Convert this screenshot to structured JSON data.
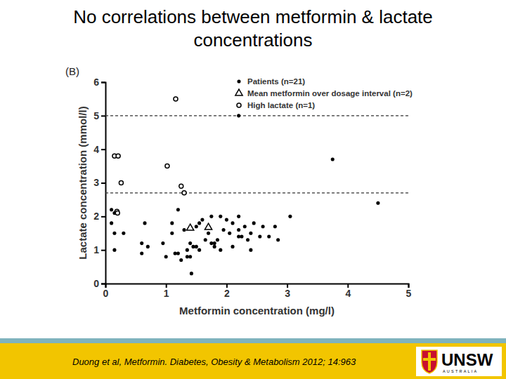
{
  "chart_data": {
    "type": "scatter",
    "title": "No correlations between metformin & lactate concentrations",
    "panel_label": "(B)",
    "x_label": "Metformin concentration (mg/l)",
    "y_label": "Lactate concentration (mmol/l)",
    "xlim": [
      0,
      5
    ],
    "xticks": [
      0,
      1,
      2,
      3,
      4,
      5
    ],
    "ylim": [
      0,
      6
    ],
    "yticks": [
      0,
      1,
      2,
      3,
      4,
      5,
      6
    ],
    "hlines": [
      5,
      2.7
    ],
    "legend": "top-right",
    "series": [
      {
        "name": "Patients (n=21)",
        "color": "#000000",
        "marker": "circle",
        "x": [
          0.1,
          0.15,
          0.1,
          0.15,
          0.3,
          0.15,
          0.6,
          0.6,
          0.7,
          0.65,
          0.95,
          1.0,
          1.1,
          1.1,
          1.15,
          1.2,
          1.25,
          1.2,
          1.3,
          1.35,
          1.35,
          1.4,
          1.4,
          1.42,
          1.45,
          1.5,
          1.5,
          1.55,
          1.55,
          1.6,
          1.65,
          1.7,
          1.7,
          1.75,
          1.75,
          1.8,
          1.8,
          1.85,
          1.9,
          1.9,
          1.95,
          2.0,
          2.05,
          2.1,
          2.1,
          2.2,
          2.2,
          2.2,
          2.25,
          2.3,
          2.35,
          2.4,
          2.4,
          2.45,
          2.55,
          2.6,
          2.7,
          2.8,
          2.85,
          3.05,
          3.75,
          4.5,
          2.2
        ],
        "values": [
          2.2,
          2.1,
          1.8,
          1.5,
          1.5,
          1.0,
          1.2,
          0.9,
          1.1,
          1.8,
          1.2,
          0.8,
          1.5,
          1.8,
          0.9,
          0.9,
          0.7,
          2.2,
          1.6,
          1.0,
          0.8,
          1.2,
          0.8,
          0.3,
          1.1,
          1.7,
          1.1,
          1.0,
          1.8,
          1.9,
          1.3,
          1.7,
          1.5,
          2.0,
          1.2,
          1.2,
          1.1,
          1.3,
          1.0,
          2.0,
          1.6,
          1.9,
          1.5,
          1.8,
          1.1,
          1.6,
          2.0,
          1.4,
          1.4,
          1.7,
          1.3,
          1.5,
          1.0,
          1.8,
          1.4,
          1.7,
          1.4,
          1.7,
          1.3,
          2.0,
          3.7,
          2.4,
          5.0
        ]
      },
      {
        "name": "Mean metformin over dosage interval (n=2)",
        "color": "#000000",
        "marker": "triangle",
        "x": [
          1.4,
          1.7
        ],
        "values": [
          1.65,
          1.67
        ]
      },
      {
        "name": "High lactate (n=1)",
        "color": "#000000",
        "marker": "open-circle",
        "x": [
          0.15,
          0.21,
          0.26,
          0.19,
          0.2,
          1.02,
          1.16,
          1.25,
          1.3
        ],
        "values": [
          3.8,
          3.8,
          3.0,
          2.15,
          2.1,
          3.5,
          5.5,
          2.9,
          2.7
        ]
      }
    ]
  },
  "footer": {
    "citation": "Duong et al, Metformin. Diabetes, Obesity & Metabolism 2012; 14:963",
    "logo": "UNSW",
    "logo_tagline": "AUSTRALIA"
  }
}
